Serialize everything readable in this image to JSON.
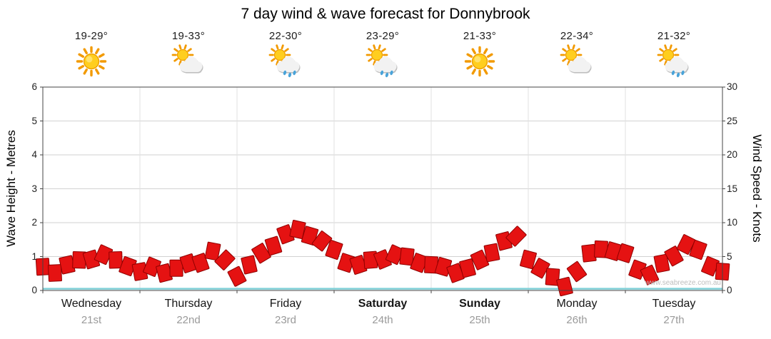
{
  "title": "7 day wind & wave forecast for Donnybrook",
  "watermark": "www.seabreeze.com.au",
  "days": [
    {
      "name": "Wednesday",
      "date": "21st",
      "temp": "19-29°",
      "icon": "sunny",
      "bold": false
    },
    {
      "name": "Thursday",
      "date": "22nd",
      "temp": "19-33°",
      "icon": "partly-cloudy",
      "bold": false
    },
    {
      "name": "Friday",
      "date": "23rd",
      "temp": "22-30°",
      "icon": "showers",
      "bold": false
    },
    {
      "name": "Saturday",
      "date": "24th",
      "temp": "23-29°",
      "icon": "showers",
      "bold": true
    },
    {
      "name": "Sunday",
      "date": "25th",
      "temp": "21-33°",
      "icon": "sunny",
      "bold": true
    },
    {
      "name": "Monday",
      "date": "26th",
      "temp": "22-34°",
      "icon": "partly-cloudy",
      "bold": false
    },
    {
      "name": "Tuesday",
      "date": "27th",
      "temp": "21-32°",
      "icon": "showers",
      "bold": false
    }
  ],
  "chart_data": {
    "type": "area",
    "title": "7 day wind & wave forecast for Donnybrook",
    "categories": [
      "Wednesday 21st",
      "Thursday 22nd",
      "Friday 23rd",
      "Saturday 24th",
      "Sunday 25th",
      "Monday 26th",
      "Tuesday 27th"
    ],
    "points_per_day": 8,
    "grid": true,
    "legend": "none",
    "left_axis": {
      "label": "Wave Height - Metres",
      "range": [
        0,
        6
      ],
      "ticks": [
        0,
        1,
        2,
        3,
        4,
        5,
        6
      ]
    },
    "right_axis": {
      "label": "Wind Speed - Knots",
      "range": [
        0,
        30
      ],
      "ticks": [
        0,
        5,
        10,
        15,
        20,
        25,
        30
      ]
    },
    "series": [
      {
        "name": "Wind Speed",
        "axis": "right",
        "unit": "knots",
        "style": "wind-flags",
        "color": "#e51212",
        "outline": "#8f0000",
        "values": [
          4.5,
          4.0,
          5.0,
          5.5,
          6.0,
          6.5,
          5.5,
          5.0,
          4.0,
          4.5,
          4.0,
          4.5,
          5.0,
          5.5,
          7.0,
          5.5,
          3.5,
          5.0,
          6.5,
          8.0,
          9.5,
          10.0,
          9.5,
          8.5,
          7.0,
          5.5,
          5.0,
          5.5,
          6.0,
          6.5,
          6.0,
          5.5,
          5.0,
          4.5,
          4.0,
          4.5,
          5.5,
          7.0,
          8.5,
          9.0,
          6.0,
          4.5,
          3.0,
          2.0,
          4.0,
          6.5,
          7.5,
          7.0,
          6.5,
          4.5,
          3.5,
          5.0,
          6.5,
          8.0,
          7.0,
          5.0,
          4.0
        ]
      },
      {
        "name": "Wave Height",
        "axis": "left",
        "unit": "metres",
        "style": "line",
        "color": "#7fd0d8",
        "values": [
          0.05,
          0.05,
          0.05,
          0.05,
          0.05,
          0.05,
          0.05,
          0.05
        ]
      }
    ]
  }
}
